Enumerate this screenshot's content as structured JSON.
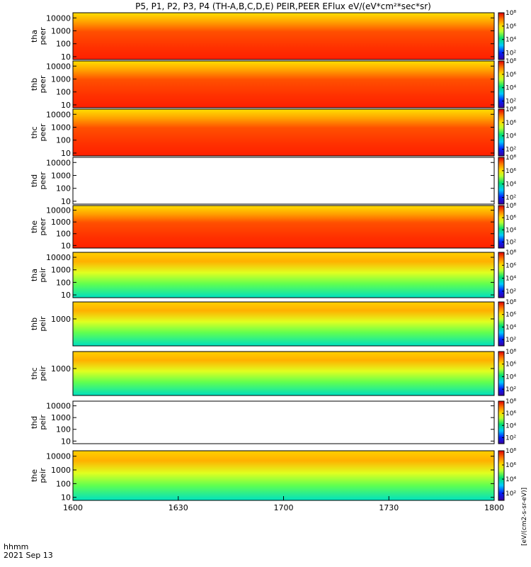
{
  "chart_data": {
    "type": "heatmap",
    "title": "P5, P1, P2, P3, P4 (TH-A,B,C,D,E) PEIR,PEER EFlux eV/(eV*cm²*sec*sr)",
    "x_tick_labels": [
      "1600",
      "1630",
      "1700",
      "1730",
      "1800"
    ],
    "x_range": [
      "16:00",
      "18:00"
    ],
    "x_corner_labels": [
      "hhmm",
      "2021 Sep 13"
    ],
    "colorbar_unit": "[eV/(cm2-s-sr-eV)]",
    "colorbar_ticks": [
      "10²",
      "10⁴",
      "10⁶",
      "10⁸"
    ],
    "colorbar_range": [
      10,
      100000000
    ],
    "panels": [
      {
        "probe": "tha",
        "product": "peer",
        "ylabel": [
          "tha",
          "peer"
        ],
        "y_ticks": [
          "10",
          "100",
          "1000",
          "10000"
        ],
        "yscale": "log"
      },
      {
        "probe": "thb",
        "product": "peer",
        "ylabel": [
          "thb",
          "peer"
        ],
        "y_ticks": [
          "10",
          "100",
          "1000",
          "10000"
        ],
        "yscale": "log"
      },
      {
        "probe": "thc",
        "product": "peer",
        "ylabel": [
          "thc",
          "peer"
        ],
        "y_ticks": [
          "10",
          "100",
          "1000",
          "10000"
        ],
        "yscale": "log"
      },
      {
        "probe": "thd",
        "product": "peer",
        "ylabel": [
          "thd",
          "peer"
        ],
        "y_ticks": [
          "10",
          "100",
          "1000",
          "10000"
        ],
        "yscale": "log"
      },
      {
        "probe": "the",
        "product": "peer",
        "ylabel": [
          "the",
          "peer"
        ],
        "y_ticks": [
          "10",
          "100",
          "1000",
          "10000"
        ],
        "yscale": "log"
      },
      {
        "probe": "tha",
        "product": "peir",
        "ylabel": [
          "tha",
          "peir"
        ],
        "y_ticks": [
          "10",
          "100",
          "1000",
          "10000"
        ],
        "yscale": "log"
      },
      {
        "probe": "thb",
        "product": "peir",
        "ylabel": [
          "thb",
          "peir"
        ],
        "y_ticks": [
          "1000"
        ],
        "yscale": "log"
      },
      {
        "probe": "thc",
        "product": "peir",
        "ylabel": [
          "thc",
          "peir"
        ],
        "y_ticks": [
          "1000"
        ],
        "yscale": "log"
      },
      {
        "probe": "thd",
        "product": "peir",
        "ylabel": [
          "thd",
          "peir"
        ],
        "y_ticks": [
          "10",
          "100",
          "1000",
          "10000"
        ],
        "yscale": "log"
      },
      {
        "probe": "the",
        "product": "peir",
        "ylabel": [
          "the",
          "peir"
        ],
        "y_ticks": [
          "10",
          "100",
          "1000",
          "10000"
        ],
        "yscale": "log"
      }
    ]
  }
}
